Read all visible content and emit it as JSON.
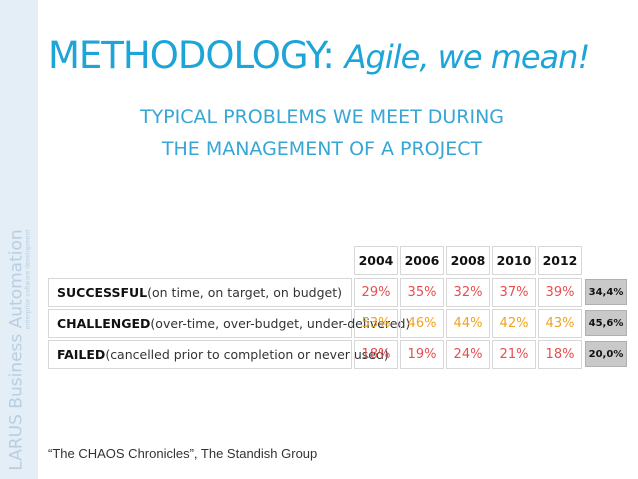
{
  "sidebar": {
    "brand": "LARUS Business Automation",
    "tagline": "enterprise software development"
  },
  "slide": {
    "title_main": "METHODOLOGY:",
    "title_sub": "Agile, we mean!",
    "subtitle_line1": "TYPICAL PROBLEMS WE MEET DURING",
    "subtitle_line2": "THE MANAGEMENT OF A PROJECT"
  },
  "table": {
    "years": [
      "2004",
      "2006",
      "2008",
      "2010",
      "2012"
    ],
    "rows": [
      {
        "bold": "SUCCESSFUL",
        "rest": " (on time, on target, on budget)",
        "values": [
          "29%",
          "35%",
          "32%",
          "37%",
          "39%"
        ],
        "color": "#e84e4e",
        "average": "34,4%"
      },
      {
        "bold": "CHALLENGED",
        "rest": " (over-time, over-budget, under-delivered)",
        "values": [
          "53%",
          "46%",
          "44%",
          "42%",
          "43%"
        ],
        "color": "#f0a31c",
        "average": "45,6%"
      },
      {
        "bold": "FAILED",
        "rest": " (cancelled prior to completion or never used)",
        "values": [
          "18%",
          "19%",
          "24%",
          "21%",
          "18%"
        ],
        "color": "#e84e4e",
        "average": "20,0%"
      }
    ]
  },
  "footer": {
    "source": "“The CHAOS Chronicles”, The Standish Group"
  },
  "colors": {
    "title": "#1da4d8",
    "subtitle": "#36a6d4",
    "sidebar": "#e4eef6"
  }
}
